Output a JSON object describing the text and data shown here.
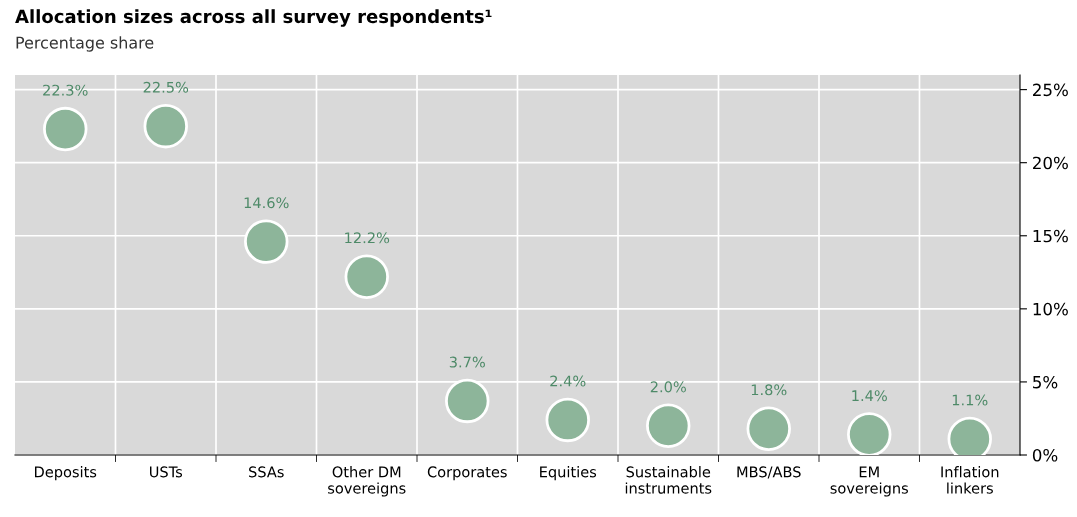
{
  "chart_data": {
    "type": "scatter",
    "title": "Allocation sizes across all survey respondents¹",
    "subtitle": "Percentage share",
    "categories": [
      "Deposits",
      "USTs",
      "SSAs",
      "Other DM\nsovereigns",
      "Corporates",
      "Equities",
      "Sustainable\ninstruments",
      "MBS/ABS",
      "EM\nsovereigns",
      "Inflation\nlinkers"
    ],
    "series": [
      {
        "color": "#8db59a",
        "values": [
          22.3,
          22.5,
          14.6,
          12.2,
          3.7,
          2.4,
          2.0,
          1.8,
          1.4,
          1.1
        ]
      }
    ],
    "value_labels": [
      "22.3%",
      "22.5%",
      "14.6%",
      "12.2%",
      "3.7%",
      "2.4%",
      "2.0%",
      "1.8%",
      "1.4%",
      "1.1%"
    ],
    "ylim": [
      0,
      26
    ],
    "yticks": [
      {
        "value": 0,
        "label": "0%"
      },
      {
        "value": 5,
        "label": "5%"
      },
      {
        "value": 10,
        "label": "10%"
      },
      {
        "value": 15,
        "label": "15%"
      },
      {
        "value": 20,
        "label": "20%"
      },
      {
        "value": 25,
        "label": "25%"
      }
    ],
    "grid": true,
    "legend": false,
    "marker": "circle"
  }
}
